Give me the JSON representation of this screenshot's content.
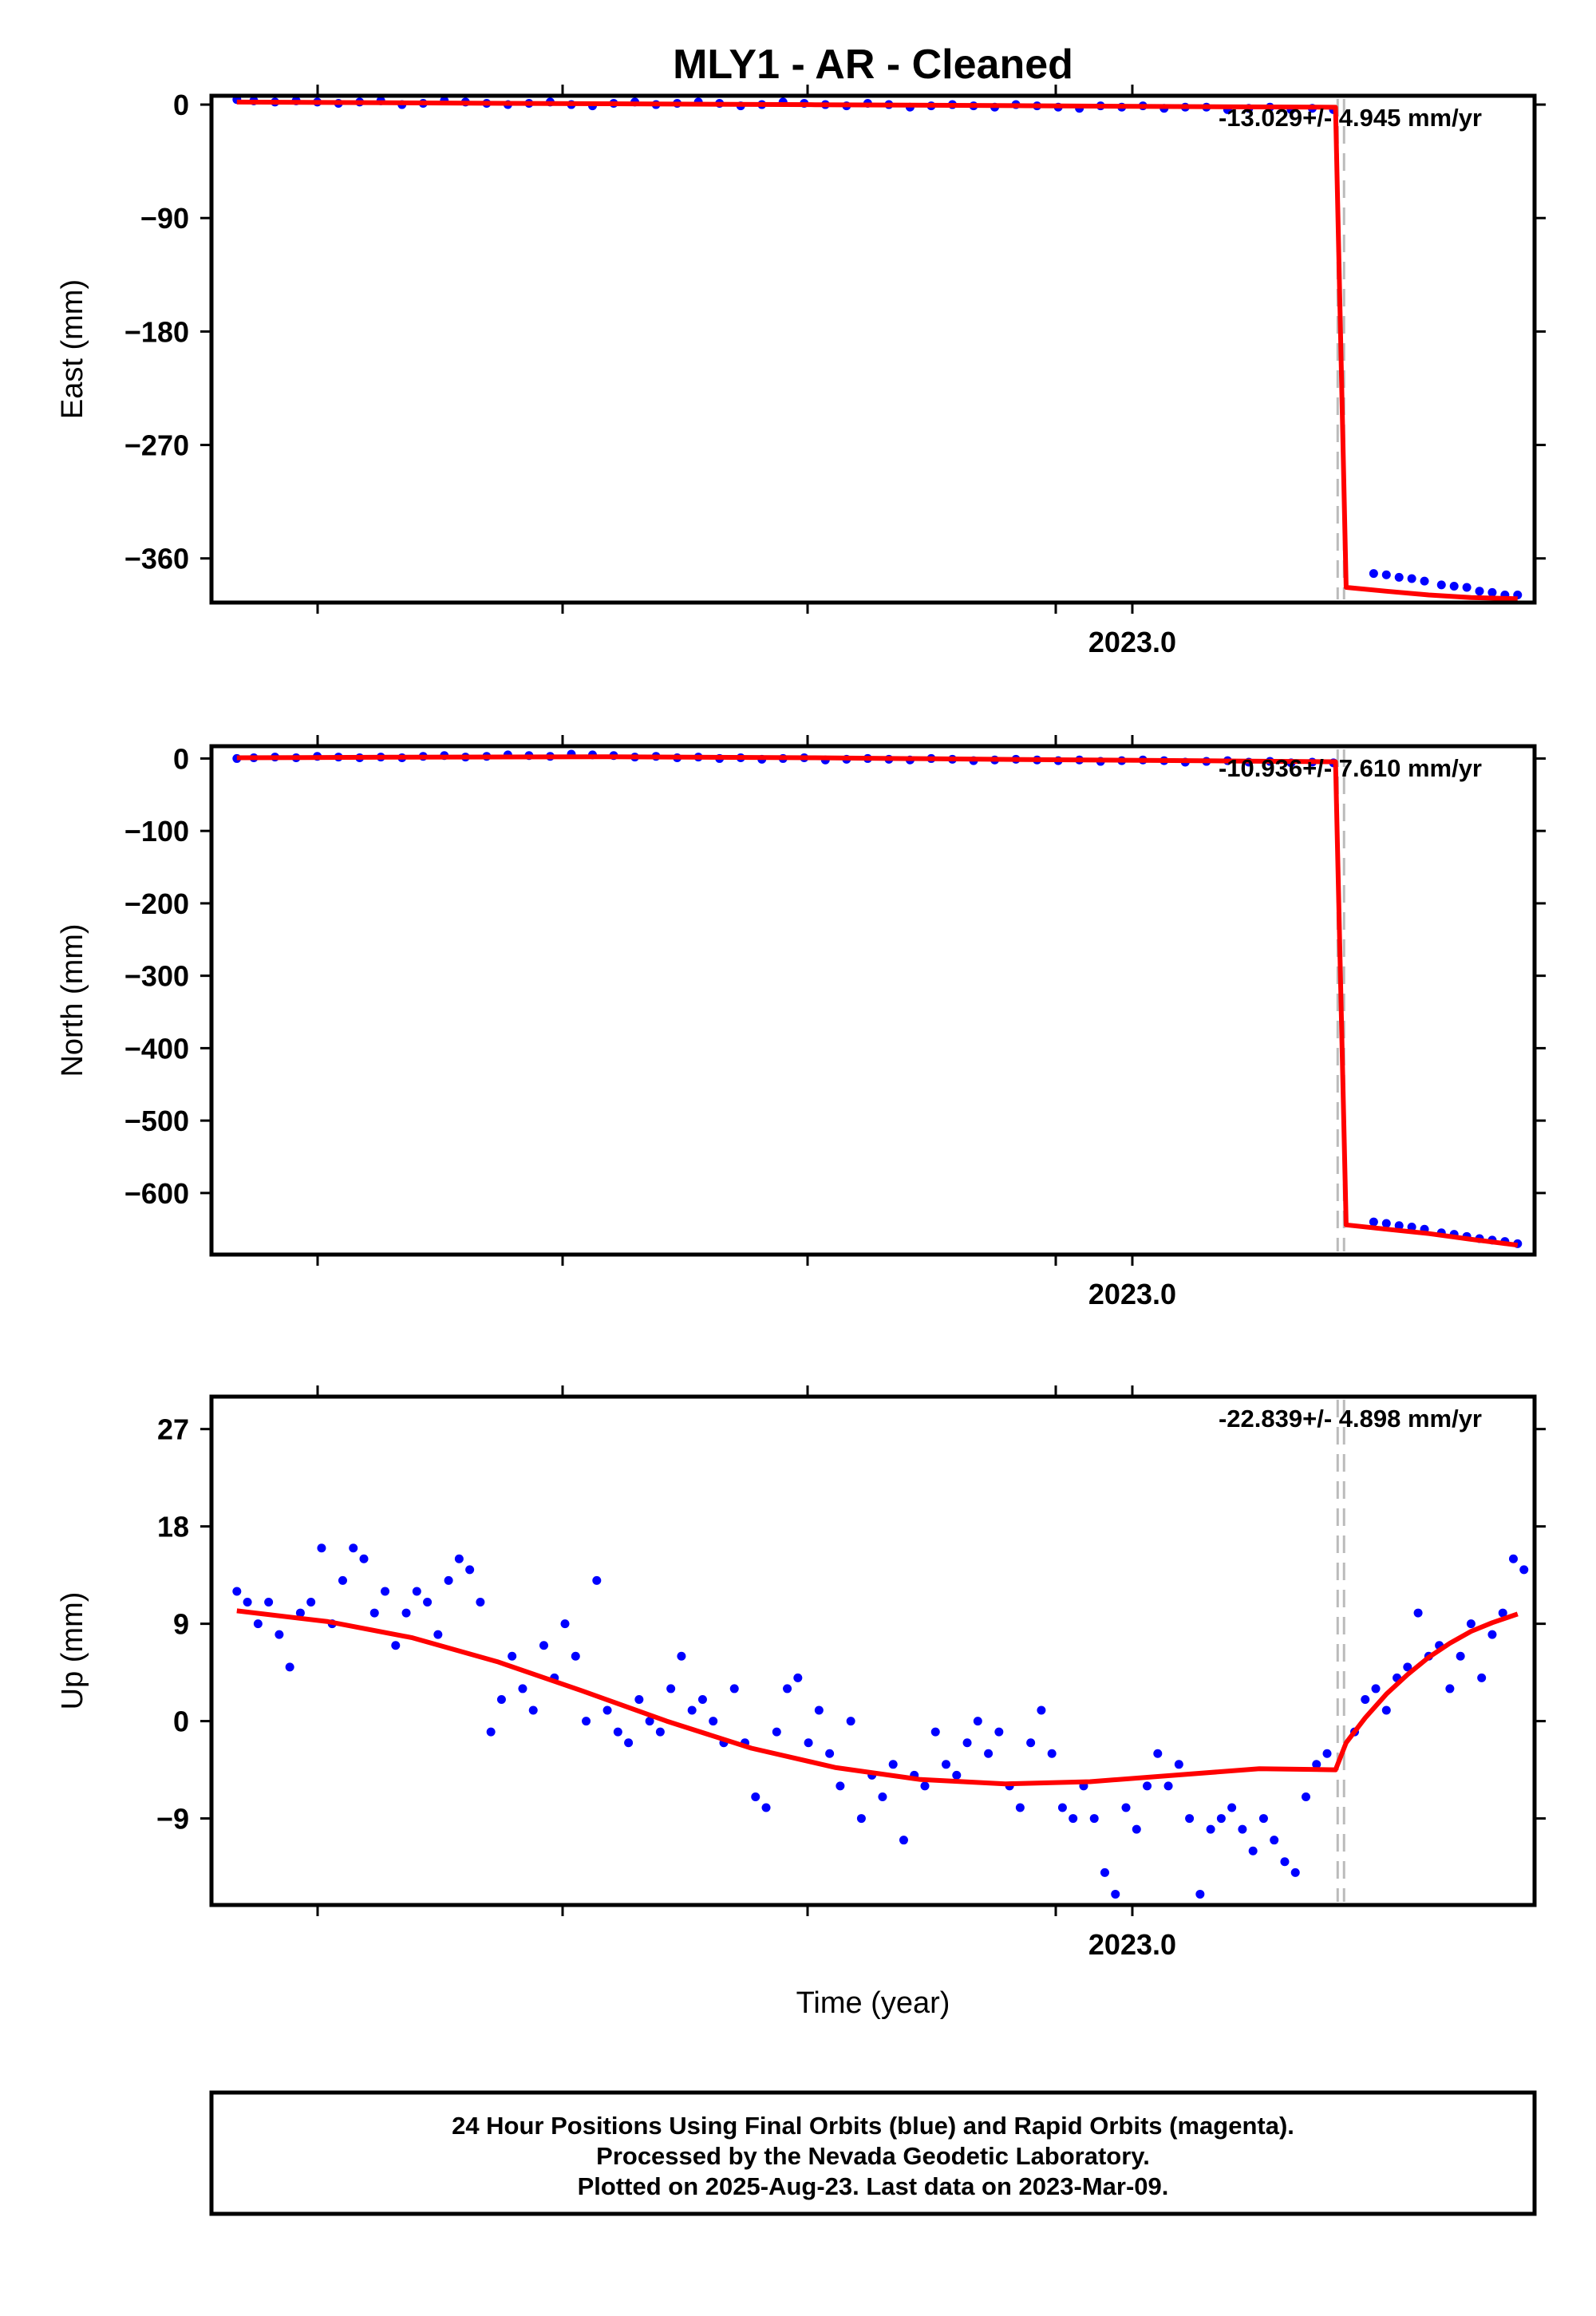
{
  "title": "MLY1  - AR - Cleaned",
  "x_axis_label": "Time (year)",
  "x_tick_label": "2023.0",
  "colors": {
    "observations": "#0000ff",
    "model": "#ff0000",
    "reference_lines": "#bbbbbb",
    "frame": "#000000"
  },
  "chart_data": [
    {
      "type": "scatter",
      "panel": "east",
      "ylabel": "East (mm)",
      "ylim": [
        -395,
        7
      ],
      "yticks": [
        0,
        -90,
        -180,
        -270,
        -360
      ],
      "xlim": [
        2022.565,
        2023.19
      ],
      "x_tick": 2023.0,
      "grid": false,
      "equipment_change_lines": [
        2023.097,
        2023.1
      ],
      "rate_text": "-13.029+/- 4.945 mm/yr",
      "series": [
        {
          "role": "observations",
          "x": [
            2022.577,
            2022.585,
            2022.595,
            2022.605,
            2022.615,
            2022.625,
            2022.635,
            2022.645,
            2022.655,
            2022.665,
            2022.675,
            2022.685,
            2022.695,
            2022.705,
            2022.715,
            2022.725,
            2022.735,
            2022.745,
            2022.755,
            2022.765,
            2022.775,
            2022.785,
            2022.795,
            2022.805,
            2022.815,
            2022.825,
            2022.835,
            2022.845,
            2022.855,
            2022.865,
            2022.875,
            2022.885,
            2022.895,
            2022.905,
            2022.915,
            2022.925,
            2022.935,
            2022.945,
            2022.955,
            2022.965,
            2022.975,
            2022.985,
            2022.995,
            2023.005,
            2023.015,
            2023.025,
            2023.035,
            2023.045,
            2023.055,
            2023.065,
            2023.075,
            2023.085,
            2023.095,
            2023.114,
            2023.12,
            2023.126,
            2023.132,
            2023.138,
            2023.146,
            2023.152,
            2023.158,
            2023.164,
            2023.17,
            2023.176,
            2023.182
          ],
          "y": [
            4,
            3,
            2,
            3,
            2,
            1,
            2,
            3,
            0,
            1,
            3,
            2,
            1,
            0,
            1,
            2,
            0,
            -1,
            1,
            2,
            0,
            1,
            2,
            1,
            -1,
            0,
            2,
            1,
            0,
            -1,
            1,
            0,
            -2,
            -1,
            0,
            -1,
            -2,
            0,
            -1,
            -2,
            -3,
            -1,
            -2,
            -1,
            -3,
            -2,
            -2,
            -4,
            -3,
            -2,
            -4,
            -3,
            -4,
            -372,
            -373,
            -375,
            -376,
            -378,
            -381,
            -382,
            -383,
            -386,
            -387,
            -389,
            -389
          ]
        },
        {
          "role": "model",
          "x": [
            2022.577,
            2022.65,
            2022.75,
            2022.85,
            2022.95,
            2023.05,
            2023.096,
            2023.101,
            2023.12,
            2023.14,
            2023.16,
            2023.182
          ],
          "y": [
            2,
            1.4,
            0.7,
            -0.1,
            -0.9,
            -1.8,
            -2.1,
            -383,
            -386,
            -389,
            -391,
            -392
          ]
        }
      ]
    },
    {
      "type": "scatter",
      "panel": "north",
      "ylabel": "North (mm)",
      "ylim": [
        -685,
        17
      ],
      "yticks": [
        0,
        -100,
        -200,
        -300,
        -400,
        -500,
        -600
      ],
      "xlim": [
        2022.565,
        2023.19
      ],
      "x_tick": 2023.0,
      "grid": false,
      "equipment_change_lines": [
        2023.097,
        2023.1
      ],
      "rate_text": "-10.936+/- 7.610 mm/yr",
      "series": [
        {
          "role": "observations",
          "x": [
            2022.577,
            2022.585,
            2022.595,
            2022.605,
            2022.615,
            2022.625,
            2022.635,
            2022.645,
            2022.655,
            2022.665,
            2022.675,
            2022.685,
            2022.695,
            2022.705,
            2022.715,
            2022.725,
            2022.735,
            2022.745,
            2022.755,
            2022.765,
            2022.775,
            2022.785,
            2022.795,
            2022.805,
            2022.815,
            2022.825,
            2022.835,
            2022.845,
            2022.855,
            2022.865,
            2022.875,
            2022.885,
            2022.895,
            2022.905,
            2022.915,
            2022.925,
            2022.935,
            2022.945,
            2022.955,
            2022.965,
            2022.975,
            2022.985,
            2022.995,
            2023.005,
            2023.015,
            2023.025,
            2023.035,
            2023.045,
            2023.055,
            2023.065,
            2023.075,
            2023.085,
            2023.095,
            2023.114,
            2023.12,
            2023.126,
            2023.132,
            2023.138,
            2023.146,
            2023.152,
            2023.158,
            2023.164,
            2023.17,
            2023.176,
            2023.182
          ],
          "y": [
            0,
            1,
            2,
            1,
            3,
            2,
            1,
            2,
            1,
            3,
            4,
            2,
            3,
            5,
            4,
            3,
            6,
            5,
            4,
            2,
            3,
            1,
            2,
            0,
            1,
            -1,
            0,
            1,
            -2,
            -1,
            0,
            -1,
            -2,
            0,
            -1,
            -3,
            -2,
            -1,
            -2,
            -3,
            -2,
            -4,
            -3,
            -2,
            -3,
            -5,
            -4,
            -3,
            -5,
            -4,
            -6,
            -5,
            -6,
            -640,
            -642,
            -645,
            -647,
            -650,
            -655,
            -657,
            -660,
            -663,
            -665,
            -667,
            -670
          ]
        },
        {
          "role": "model",
          "x": [
            2022.577,
            2022.65,
            2022.75,
            2022.85,
            2022.95,
            2023.05,
            2023.096,
            2023.101,
            2023.12,
            2023.14,
            2023.16,
            2023.182
          ],
          "y": [
            1,
            1.8,
            2.5,
            1,
            -1.5,
            -3.5,
            -4.5,
            -644,
            -650,
            -656,
            -664,
            -672
          ]
        }
      ]
    },
    {
      "type": "scatter",
      "panel": "up",
      "ylabel": "Up (mm)",
      "ylim": [
        -17,
        30
      ],
      "yticks": [
        27,
        18,
        9,
        0,
        -9
      ],
      "xlim": [
        2022.565,
        2023.19
      ],
      "x_tick": 2023.0,
      "grid": false,
      "equipment_change_lines": [
        2023.097,
        2023.1
      ],
      "rate_text": "-22.839+/- 4.898 mm/yr",
      "series": [
        {
          "role": "observations",
          "x": [
            2022.577,
            2022.582,
            2022.587,
            2022.592,
            2022.597,
            2022.602,
            2022.607,
            2022.612,
            2022.617,
            2022.622,
            2022.627,
            2022.632,
            2022.637,
            2022.642,
            2022.647,
            2022.652,
            2022.657,
            2022.662,
            2022.667,
            2022.672,
            2022.677,
            2022.682,
            2022.687,
            2022.692,
            2022.697,
            2022.702,
            2022.707,
            2022.712,
            2022.717,
            2022.722,
            2022.727,
            2022.732,
            2022.737,
            2022.742,
            2022.747,
            2022.752,
            2022.757,
            2022.762,
            2022.767,
            2022.772,
            2022.777,
            2022.782,
            2022.787,
            2022.792,
            2022.797,
            2022.802,
            2022.807,
            2022.812,
            2022.817,
            2022.822,
            2022.827,
            2022.832,
            2022.837,
            2022.842,
            2022.847,
            2022.852,
            2022.857,
            2022.862,
            2022.867,
            2022.872,
            2022.877,
            2022.882,
            2022.887,
            2022.892,
            2022.897,
            2022.902,
            2022.907,
            2022.912,
            2022.917,
            2022.922,
            2022.927,
            2022.932,
            2022.937,
            2022.942,
            2022.947,
            2022.952,
            2022.957,
            2022.962,
            2022.967,
            2022.972,
            2022.977,
            2022.982,
            2022.987,
            2022.992,
            2022.997,
            2023.002,
            2023.007,
            2023.012,
            2023.017,
            2023.022,
            2023.027,
            2023.032,
            2023.037,
            2023.042,
            2023.047,
            2023.052,
            2023.057,
            2023.062,
            2023.067,
            2023.072,
            2023.077,
            2023.082,
            2023.087,
            2023.092,
            2023.105,
            2023.11,
            2023.115,
            2023.12,
            2023.125,
            2023.13,
            2023.135,
            2023.14,
            2023.145,
            2023.15,
            2023.155,
            2023.16,
            2023.165,
            2023.17,
            2023.175,
            2023.18,
            2023.185
          ],
          "y": [
            12,
            11,
            9,
            11,
            8,
            5,
            10,
            11,
            16,
            9,
            13,
            16,
            15,
            10,
            12,
            7,
            10,
            12,
            11,
            8,
            13,
            15,
            14,
            11,
            -1,
            2,
            6,
            3,
            1,
            7,
            4,
            9,
            6,
            0,
            13,
            1,
            -1,
            -2,
            2,
            0,
            -1,
            3,
            6,
            1,
            2,
            0,
            -2,
            3,
            -2,
            -7,
            -8,
            -1,
            3,
            4,
            -2,
            1,
            -3,
            -6,
            0,
            -9,
            -5,
            -7,
            -4,
            -11,
            -5,
            -6,
            -1,
            -4,
            -5,
            -2,
            0,
            -3,
            -1,
            -6,
            -8,
            -2,
            1,
            -3,
            -8,
            -9,
            -6,
            -9,
            -14,
            -16,
            -8,
            -10,
            -6,
            -3,
            -6,
            -4,
            -9,
            -16,
            -10,
            -9,
            -8,
            -10,
            -12,
            -9,
            -11,
            -13,
            -14,
            -7,
            -4,
            -3,
            -1,
            2,
            3,
            1,
            4,
            5,
            10,
            6,
            7,
            3,
            6,
            9,
            4,
            8,
            10,
            15,
            14
          ],
          "y_outliers_note": ""
        },
        {
          "role": "model",
          "x": [
            2022.577,
            2022.62,
            2022.66,
            2022.7,
            2022.74,
            2022.78,
            2022.82,
            2022.86,
            2022.9,
            2022.94,
            2022.98,
            2023.02,
            2023.06,
            2023.096,
            2023.101,
            2023.11,
            2023.12,
            2023.13,
            2023.14,
            2023.15,
            2023.16,
            2023.17,
            2023.182
          ],
          "y": [
            10.2,
            9.2,
            7.7,
            5.5,
            2.8,
            0,
            -2.5,
            -4.3,
            -5.4,
            -5.8,
            -5.6,
            -5.0,
            -4.4,
            -4.5,
            -2.0,
            0.3,
            2.5,
            4.3,
            5.9,
            7.2,
            8.3,
            9.1,
            9.9
          ]
        }
      ]
    }
  ],
  "footer": {
    "line1": "24 Hour Positions Using Final Orbits (blue) and Rapid Orbits (magenta).",
    "line2": "Processed by the Nevada Geodetic Laboratory.",
    "line3": "Plotted on 2025-Aug-23. Last data on 2023-Mar-09."
  }
}
